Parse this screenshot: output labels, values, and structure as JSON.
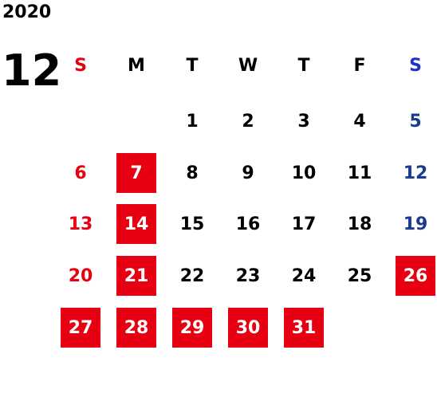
{
  "year": "2020",
  "month": "12",
  "weekday_headers": [
    "S",
    "M",
    "T",
    "W",
    "T",
    "F",
    "S"
  ],
  "colors": {
    "sunday_text": "#e60012",
    "saturday_text": "#1a3a8f",
    "weekday_text": "#000000",
    "holiday_bg": "#e60012",
    "holiday_text": "#ffffff"
  },
  "weeks": [
    [
      null,
      null,
      "1",
      "2",
      "3",
      "4",
      "5"
    ],
    [
      "6",
      "7",
      "8",
      "9",
      "10",
      "11",
      "12"
    ],
    [
      "13",
      "14",
      "15",
      "16",
      "17",
      "18",
      "19"
    ],
    [
      "20",
      "21",
      "22",
      "23",
      "24",
      "25",
      "26"
    ],
    [
      "27",
      "28",
      "29",
      "30",
      "31",
      null,
      null
    ]
  ],
  "highlighted_days": [
    "7",
    "14",
    "21",
    "26",
    "27",
    "28",
    "29",
    "30",
    "31"
  ]
}
